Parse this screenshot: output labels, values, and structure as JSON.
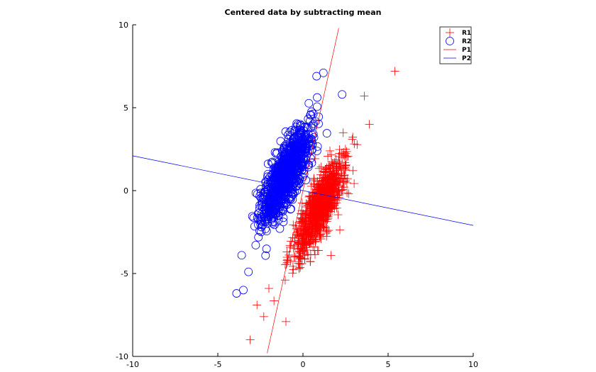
{
  "chart_data": {
    "type": "scatter",
    "title": "Centered data by subtracting mean",
    "xlabel": "",
    "ylabel": "",
    "xlim": [
      -10,
      10
    ],
    "ylim": [
      -10,
      10
    ],
    "xticks": [
      "-10",
      "-5",
      "0",
      "5",
      "10"
    ],
    "yticks": [
      "-10",
      "-5",
      "0",
      "5",
      "10"
    ],
    "grid": false,
    "legend_position": "top-right",
    "legend": [
      "R1",
      "R2",
      "P1",
      "P2"
    ],
    "series": [
      {
        "name": "R1",
        "kind": "scatter",
        "marker": "plus",
        "color": "#ff0000",
        "cluster": {
          "n": 1000,
          "mean": [
            1.0,
            -1.0
          ],
          "direction": [
            0.44,
            1.0
          ],
          "spread_major": 1.55,
          "spread_minor": 0.42
        },
        "outliers": [
          [
            5.4,
            7.2
          ],
          [
            3.6,
            5.7
          ],
          [
            3.9,
            4.0
          ],
          [
            -3.1,
            -9.0
          ],
          [
            -2.3,
            -7.6
          ],
          [
            -2.7,
            -6.9
          ],
          [
            -1.0,
            -7.9
          ],
          [
            -2.0,
            -5.9
          ]
        ]
      },
      {
        "name": "R2",
        "kind": "scatter",
        "marker": "circle",
        "color": "#0000ff",
        "cluster": {
          "n": 1000,
          "mean": [
            -1.0,
            1.0
          ],
          "direction": [
            0.44,
            1.0
          ],
          "spread_major": 1.55,
          "spread_minor": 0.42
        },
        "outliers": [
          [
            2.3,
            5.8
          ],
          [
            0.8,
            6.9
          ],
          [
            1.2,
            7.1
          ],
          [
            -3.9,
            -6.2
          ],
          [
            -3.5,
            -6.0
          ],
          [
            -3.2,
            -4.9
          ],
          [
            -3.6,
            -3.9
          ]
        ]
      },
      {
        "name": "P1",
        "kind": "line",
        "color": "#ff0000",
        "points": [
          [
            -2.1,
            -9.8
          ],
          [
            2.1,
            9.8
          ]
        ]
      },
      {
        "name": "P2",
        "kind": "line",
        "color": "#0000ff",
        "points": [
          [
            -10,
            2.1
          ],
          [
            10,
            -2.1
          ]
        ]
      }
    ]
  }
}
